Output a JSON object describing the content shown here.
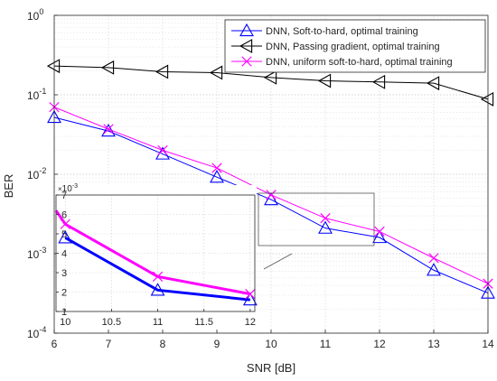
{
  "chart_data": {
    "type": "line",
    "xlabel": "SNR [dB]",
    "ylabel": "BER",
    "xlim": [
      6,
      14
    ],
    "ylim": [
      0.0001,
      1
    ],
    "yscale": "log",
    "grid": true,
    "legend_position": "top-right",
    "x_ticks": [
      "6",
      "7",
      "8",
      "9",
      "10",
      "11",
      "12",
      "13",
      "14"
    ],
    "y_ticks": [
      {
        "base": "10",
        "exp": "-4",
        "value": 0.0001
      },
      {
        "base": "10",
        "exp": "-3",
        "value": 0.001
      },
      {
        "base": "10",
        "exp": "-2",
        "value": 0.01
      },
      {
        "base": "10",
        "exp": "-1",
        "value": 0.1
      },
      {
        "base": "10",
        "exp": "0",
        "value": 1
      }
    ],
    "x": [
      6,
      7,
      8,
      9,
      10,
      11,
      12,
      13,
      14
    ],
    "series": [
      {
        "name": "DNN, Soft-to-hard, optimal training",
        "marker": "triangle-up",
        "color": "#0000ff",
        "values": [
          0.052,
          0.035,
          0.018,
          0.0092,
          0.0048,
          0.0021,
          0.0016,
          0.00062,
          0.00032
        ]
      },
      {
        "name": "DNN, Passing gradient, optimal training",
        "marker": "triangle-left",
        "color": "#000000",
        "values": [
          0.23,
          0.22,
          0.195,
          0.19,
          0.165,
          0.15,
          0.145,
          0.14,
          0.088
        ]
      },
      {
        "name": "DNN, uniform soft-to-hard, optimal training",
        "marker": "x",
        "color": "#ff00ff",
        "values": [
          0.07,
          0.037,
          0.02,
          0.012,
          0.0055,
          0.0028,
          0.0019,
          0.00088,
          0.00042
        ]
      }
    ],
    "inset": {
      "xlim": [
        9.9,
        12.05
      ],
      "ylim": [
        0.001,
        0.007
      ],
      "x_ticks": [
        "10",
        "10.5",
        "11",
        "11.5",
        "12"
      ],
      "y_ticks": [
        "1",
        "2",
        "3",
        "4",
        "5",
        "6",
        "7"
      ],
      "y_multiplier_base": "10",
      "y_multiplier_exp": "-3",
      "series": [
        {
          "name": "DNN, Soft-to-hard, optimal training",
          "x": [
            10,
            11,
            12
          ],
          "values": [
            0.0048,
            0.0021,
            0.0016
          ]
        },
        {
          "name": "DNN, uniform soft-to-hard, optimal training",
          "x": [
            9.9,
            10,
            11,
            12
          ],
          "values": [
            0.0062,
            0.0055,
            0.0028,
            0.0019
          ]
        }
      ]
    }
  }
}
